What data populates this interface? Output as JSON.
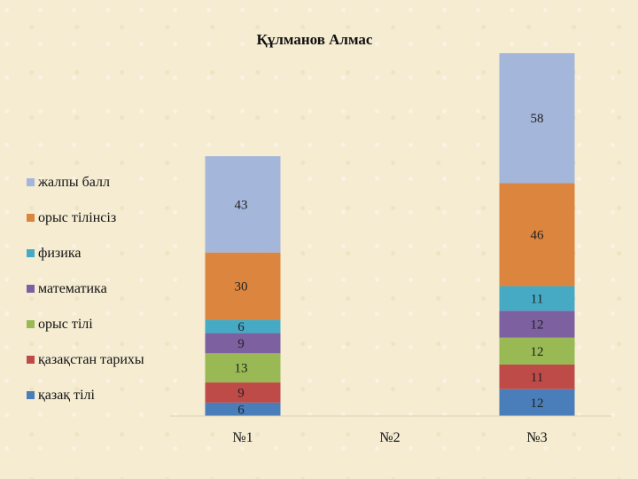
{
  "chart_data": {
    "type": "bar",
    "stacked": true,
    "title": "Құлманов Алмас",
    "categories": [
      "№1",
      "№2",
      "№3"
    ],
    "series": [
      {
        "name": "қазақ тілі",
        "color": "#4a7ebb",
        "values": [
          6,
          null,
          12
        ]
      },
      {
        "name": "қазақстан тарихы",
        "color": "#be4b48",
        "values": [
          9,
          null,
          11
        ]
      },
      {
        "name": "орыс тілі",
        "color": "#98b954",
        "values": [
          13,
          null,
          12
        ]
      },
      {
        "name": "математика",
        "color": "#7d60a0",
        "values": [
          9,
          null,
          12
        ]
      },
      {
        "name": "физика",
        "color": "#46aac5",
        "values": [
          6,
          null,
          11
        ]
      },
      {
        "name": "орыс тілінсіз",
        "color": "#dc853e",
        "values": [
          30,
          null,
          46
        ]
      },
      {
        "name": "жалпы балл",
        "color": "#a5b6db",
        "values": [
          43,
          null,
          58
        ]
      }
    ],
    "legend_position": "left",
    "grid": false,
    "ylim": [
      0,
      160
    ]
  }
}
